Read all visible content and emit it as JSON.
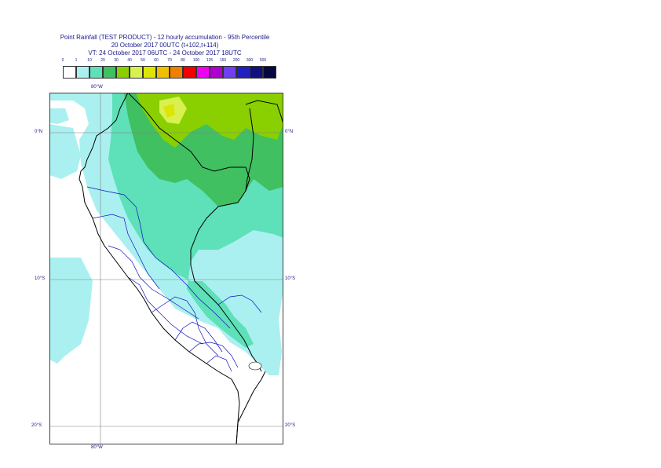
{
  "header": {
    "line1": "Point Rainfall (TEST PRODUCT) - 12 hourly accumulation - 95th Percentile",
    "line2": "20 October 2017 00UTC (t+102,t+114)",
    "line3": "VT: 24 October 2017 06UTC - 24 October 2017 18UTC"
  },
  "legend": {
    "thresholds": [
      "0",
      "1",
      "10",
      "20",
      "30",
      "40",
      "50",
      "60",
      "70",
      "80",
      "100",
      "125",
      "150",
      "200",
      "300",
      "500"
    ],
    "colors": [
      "#ffffff",
      "#aaf0f0",
      "#5ee0b8",
      "#40c060",
      "#8ad000",
      "#d8f050",
      "#dce600",
      "#f0c000",
      "#f08000",
      "#f00000",
      "#f000f0",
      "#b000d0",
      "#7040f0",
      "#2020c0",
      "#101080",
      "#080840"
    ]
  },
  "map": {
    "lon_labels": {
      "top": "80°W",
      "bottom": "80°W"
    },
    "lat_labels": [
      "0°N",
      "10°S",
      "20°S"
    ]
  }
}
